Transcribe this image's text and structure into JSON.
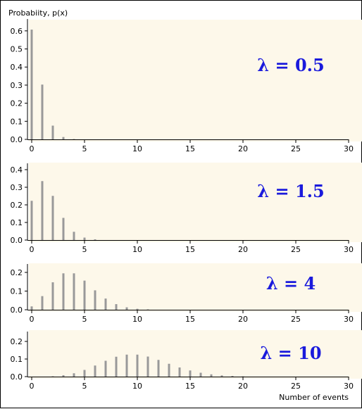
{
  "page": {
    "y_axis_label": "Probabiity, p(x)",
    "x_axis_label": "Number of events"
  },
  "colors": {
    "panel_background": "#fdf8ea",
    "bar": "#999999",
    "lambda_text": "#1a1adc",
    "axis": "#000000"
  },
  "chart_data": [
    {
      "type": "bar",
      "title": "λ = 0.5",
      "xlim": [
        0,
        30
      ],
      "ylim": [
        0,
        0.65
      ],
      "yticks": [
        0.0,
        0.1,
        0.2,
        0.3,
        0.4,
        0.5,
        0.6
      ],
      "ytick_labels": [
        "0.0",
        "0.1",
        "0.2",
        "0.3",
        "0.4",
        "0.5",
        "0.6"
      ],
      "xticks": [
        0,
        5,
        10,
        15,
        20,
        25,
        30
      ],
      "x": [
        0,
        1,
        2,
        3,
        4,
        5,
        6,
        7,
        8,
        9,
        10,
        11,
        12,
        13,
        14,
        15,
        16,
        17,
        18,
        19,
        20,
        21,
        22,
        23,
        24,
        25,
        26,
        27,
        28,
        29,
        30
      ],
      "values": [
        0.607,
        0.303,
        0.076,
        0.013,
        0.002,
        0.0,
        0.0,
        0.0,
        0.0,
        0.0,
        0.0,
        0.0,
        0.0,
        0.0,
        0.0,
        0.0,
        0.0,
        0.0,
        0.0,
        0.0,
        0.0,
        0.0,
        0.0,
        0.0,
        0.0,
        0.0,
        0.0,
        0.0,
        0.0,
        0.0,
        0.0
      ]
    },
    {
      "type": "bar",
      "title": "λ = 1.5",
      "xlim": [
        0,
        30
      ],
      "ylim": [
        0,
        0.42
      ],
      "yticks": [
        0.0,
        0.1,
        0.2,
        0.3,
        0.4
      ],
      "ytick_labels": [
        "0.0",
        "0.1",
        "0.2",
        "0.3",
        "0.4"
      ],
      "xticks": [
        0,
        5,
        10,
        15,
        20,
        25,
        30
      ],
      "x": [
        0,
        1,
        2,
        3,
        4,
        5,
        6,
        7,
        8,
        9,
        10,
        11,
        12,
        13,
        14,
        15,
        16,
        17,
        18,
        19,
        20,
        21,
        22,
        23,
        24,
        25,
        26,
        27,
        28,
        29,
        30
      ],
      "values": [
        0.223,
        0.335,
        0.251,
        0.126,
        0.047,
        0.014,
        0.004,
        0.001,
        0.0,
        0.0,
        0.0,
        0.0,
        0.0,
        0.0,
        0.0,
        0.0,
        0.0,
        0.0,
        0.0,
        0.0,
        0.0,
        0.0,
        0.0,
        0.0,
        0.0,
        0.0,
        0.0,
        0.0,
        0.0,
        0.0,
        0.0
      ]
    },
    {
      "type": "bar",
      "title": "λ = 4",
      "xlim": [
        0,
        30
      ],
      "ylim": [
        0,
        0.23
      ],
      "yticks": [
        0.0,
        0.1,
        0.2
      ],
      "ytick_labels": [
        "0.0",
        "0.1",
        "0.2"
      ],
      "xticks": [
        0,
        5,
        10,
        15,
        20,
        25,
        30
      ],
      "x": [
        0,
        1,
        2,
        3,
        4,
        5,
        6,
        7,
        8,
        9,
        10,
        11,
        12,
        13,
        14,
        15,
        16,
        17,
        18,
        19,
        20,
        21,
        22,
        23,
        24,
        25,
        26,
        27,
        28,
        29,
        30
      ],
      "values": [
        0.018,
        0.073,
        0.147,
        0.195,
        0.195,
        0.156,
        0.104,
        0.06,
        0.03,
        0.013,
        0.005,
        0.002,
        0.001,
        0.0,
        0.0,
        0.0,
        0.0,
        0.0,
        0.0,
        0.0,
        0.0,
        0.0,
        0.0,
        0.0,
        0.0,
        0.0,
        0.0,
        0.0,
        0.0,
        0.0,
        0.0
      ]
    },
    {
      "type": "bar",
      "title": "λ = 10",
      "xlim": [
        0,
        30
      ],
      "ylim": [
        0,
        0.24
      ],
      "yticks": [
        0.0,
        0.1,
        0.2
      ],
      "ytick_labels": [
        "0.0",
        "0.1",
        "0.2"
      ],
      "xticks": [
        0,
        5,
        10,
        15,
        20,
        25,
        30
      ],
      "x": [
        0,
        1,
        2,
        3,
        4,
        5,
        6,
        7,
        8,
        9,
        10,
        11,
        12,
        13,
        14,
        15,
        16,
        17,
        18,
        19,
        20,
        21,
        22,
        23,
        24,
        25,
        26,
        27,
        28,
        29,
        30
      ],
      "values": [
        0.0,
        0.0005,
        0.002,
        0.008,
        0.019,
        0.038,
        0.063,
        0.09,
        0.113,
        0.125,
        0.125,
        0.114,
        0.095,
        0.073,
        0.052,
        0.035,
        0.022,
        0.013,
        0.007,
        0.004,
        0.002,
        0.001,
        0.0,
        0.0,
        0.0,
        0.0,
        0.0,
        0.0,
        0.0,
        0.0,
        0.0
      ]
    }
  ]
}
